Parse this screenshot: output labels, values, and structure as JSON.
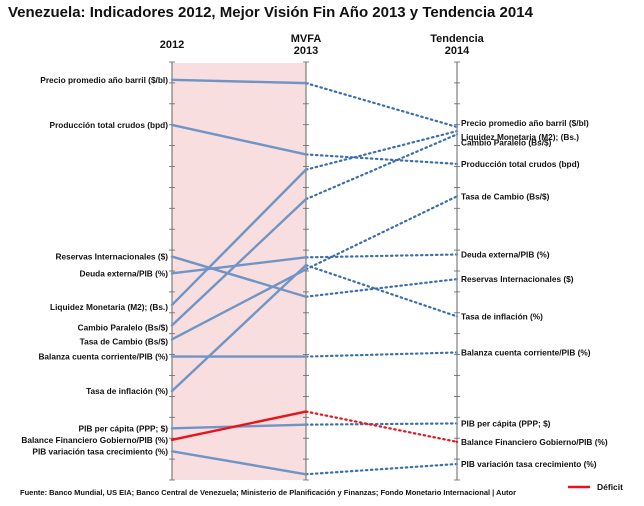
{
  "title": "Venezuela: Indicadores 2012, Mejor Visión Fin Año 2013 y Tendencia 2014",
  "source": "Fuente: Banco Mundial, US EIA; Banco Central de Venezuela; Ministerio de Planificación y Finanzas; Fondo Monetario Internacional | Autor",
  "colors": {
    "series": "#6f95c6",
    "deficit": "#e8141b",
    "band": "#f8dede",
    "axis": "#666666"
  },
  "chart_data": {
    "type": "slope",
    "columns": [
      {
        "id": "c2012",
        "label": "2012"
      },
      {
        "id": "mvfa",
        "label": "MVFA\n2013"
      },
      {
        "id": "t2014",
        "label": "Tendencia\n2014"
      }
    ],
    "value_range": [
      0,
      100
    ],
    "legend": {
      "label": "Déficit",
      "placement": "bottom-right"
    },
    "series": [
      {
        "name": "Precio promedio año barril ($/bl)",
        "values": [
          97.6,
          96.8,
          86.1
        ],
        "style": "normal"
      },
      {
        "name": "Producción total crudos (bpd)",
        "values": [
          86.6,
          79.4,
          77.1
        ],
        "style": "normal"
      },
      {
        "name": "Reservas Internacionales ($)",
        "values": [
          54.5,
          44.7,
          49.0
        ],
        "style": "normal"
      },
      {
        "name": "Deuda externa/PIB (%)",
        "values": [
          50.4,
          54.3,
          55.0
        ],
        "style": "normal"
      },
      {
        "name": "Liquidez Monetaria (M2); (Bs.)",
        "values": [
          42.7,
          75.7,
          85.1
        ],
        "style": "normal"
      },
      {
        "name": "Cambio Paralelo (Bs/$)",
        "values": [
          37.7,
          68.5,
          84.3
        ],
        "style": "normal"
      },
      {
        "name": "Tasa de Cambio (Bs/$)",
        "values": [
          34.3,
          51.4,
          69.2
        ],
        "style": "normal"
      },
      {
        "name": "Balanza cuenta corriente/PIB (%)",
        "values": [
          30.1,
          30.1,
          31.1
        ],
        "style": "normal"
      },
      {
        "name": "Tasa de inflación (%)",
        "values": [
          21.7,
          52.4,
          39.9
        ],
        "style": "normal"
      },
      {
        "name": "PIB per cápita (PPP; $)",
        "values": [
          12.6,
          13.5,
          13.8
        ],
        "style": "normal"
      },
      {
        "name": "Balance Financiero Gobierno/PIB (%)",
        "values": [
          9.8,
          16.7,
          9.3
        ],
        "style": "deficit"
      },
      {
        "name": "PIB variación tasa crecimiento (%)",
        "values": [
          7.0,
          1.4,
          3.9
        ],
        "style": "normal"
      }
    ]
  }
}
